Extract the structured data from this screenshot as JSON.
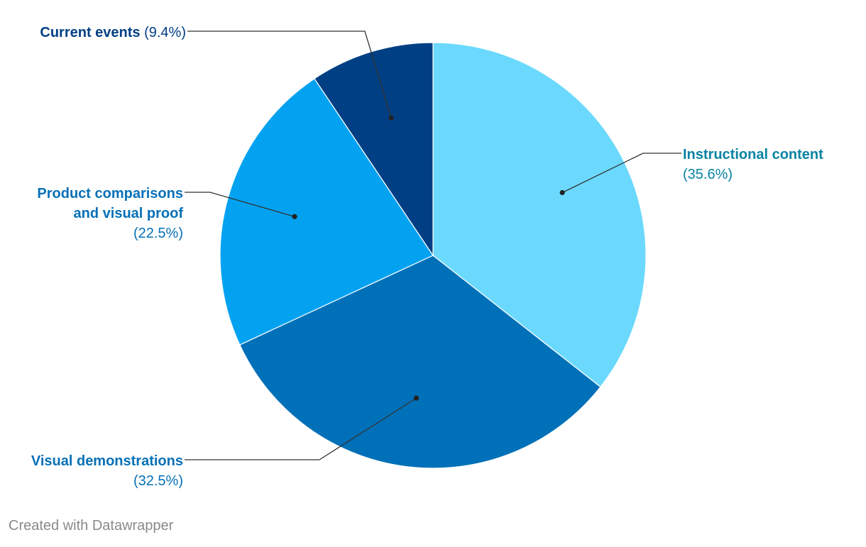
{
  "chart_data": {
    "type": "pie",
    "start_angle_deg": 0,
    "direction": "clockwise",
    "slices": [
      {
        "name": "Instructional content",
        "value": 35.6,
        "value_label": "(35.6%)",
        "color": "#6bd9fd",
        "label_color": "#0a83a3"
      },
      {
        "name": "Visual demonstrations",
        "value": 32.5,
        "value_label": "(32.5%)",
        "color": "#0070b8",
        "label_color": "#0670b7"
      },
      {
        "name": "Product comparisons and visual proof",
        "value": 22.5,
        "value_label": "(22.5%)",
        "color": "#03a2f1",
        "label_color": "#0670b7"
      },
      {
        "name": "Current events",
        "value": 9.4,
        "value_label": "(9.4%)",
        "color": "#013f84",
        "label_color": "#013f84"
      }
    ]
  },
  "footer": {
    "credit": "Created with Datawrapper"
  }
}
